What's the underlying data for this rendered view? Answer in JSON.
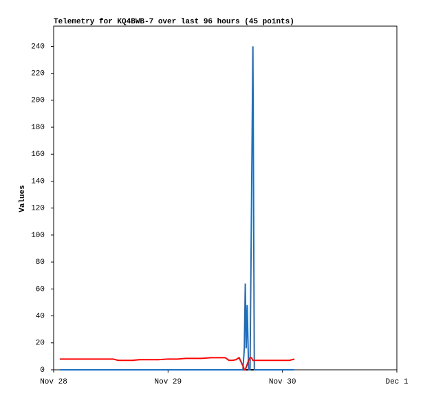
{
  "chart_data": {
    "type": "line",
    "title": "Telemetry for KQ4BWB-7 over last 96 hours (45 points)",
    "y_label": "Values",
    "x": [
      1.3,
      3,
      5,
      7,
      9,
      11,
      12.5,
      13.5,
      15,
      16.5,
      18,
      20,
      22,
      24,
      26,
      27.7,
      29,
      31,
      33,
      34.5,
      36,
      36.8,
      37.5,
      38.2,
      38.9,
      39.3,
      39.7,
      40.0,
      40.2,
      40.4,
      40.6,
      40.9,
      41.2,
      41.5,
      41.8,
      42.1,
      42.6,
      43.5,
      44.5,
      45.5,
      46.5,
      47.5,
      48.5,
      49.5,
      50.5
    ],
    "series": [
      {
        "color": "#000000",
        "values": [
          0,
          0,
          0,
          0,
          0,
          0,
          0,
          0,
          0,
          0,
          0,
          0,
          0,
          0,
          0,
          0,
          0,
          0,
          0,
          0,
          0,
          0,
          0,
          0,
          0,
          0,
          0,
          0,
          0,
          0,
          0,
          0,
          0,
          0,
          0,
          0,
          0,
          0,
          0,
          0,
          0,
          0,
          0,
          0,
          0
        ]
      },
      {
        "color": "#1a6fc4",
        "values": [
          0,
          0,
          0,
          0,
          0,
          0,
          0,
          0,
          0,
          0,
          0,
          0,
          0,
          0,
          0,
          0,
          0,
          0,
          0,
          0,
          0,
          0,
          0,
          0,
          0,
          0,
          0,
          16,
          64,
          16,
          48,
          0,
          0,
          120,
          240,
          0,
          0,
          0,
          0,
          0,
          0,
          0,
          0,
          0,
          0
        ]
      },
      {
        "color": "#ff0000",
        "values": [
          8,
          8,
          8,
          8,
          8,
          8,
          8,
          7,
          7,
          7,
          7.5,
          7.5,
          7.5,
          8,
          8,
          8.5,
          8.5,
          8.5,
          9,
          9,
          9,
          7,
          7,
          7.5,
          9,
          6,
          3,
          0,
          0,
          2,
          4,
          7,
          9,
          9,
          7,
          7,
          7,
          7,
          7,
          7,
          7,
          7,
          7,
          7,
          8
        ]
      }
    ],
    "xlim": [
      0,
      72
    ],
    "xticks": [
      {
        "value": 0,
        "label": "Nov 28"
      },
      {
        "value": 24,
        "label": "Nov 29"
      },
      {
        "value": 48,
        "label": "Nov 30"
      },
      {
        "value": 72,
        "label": "Dec 1"
      }
    ],
    "ylim": [
      0,
      255
    ],
    "yticks": [
      0,
      20,
      40,
      60,
      80,
      100,
      120,
      140,
      160,
      180,
      200,
      220,
      240
    ]
  }
}
